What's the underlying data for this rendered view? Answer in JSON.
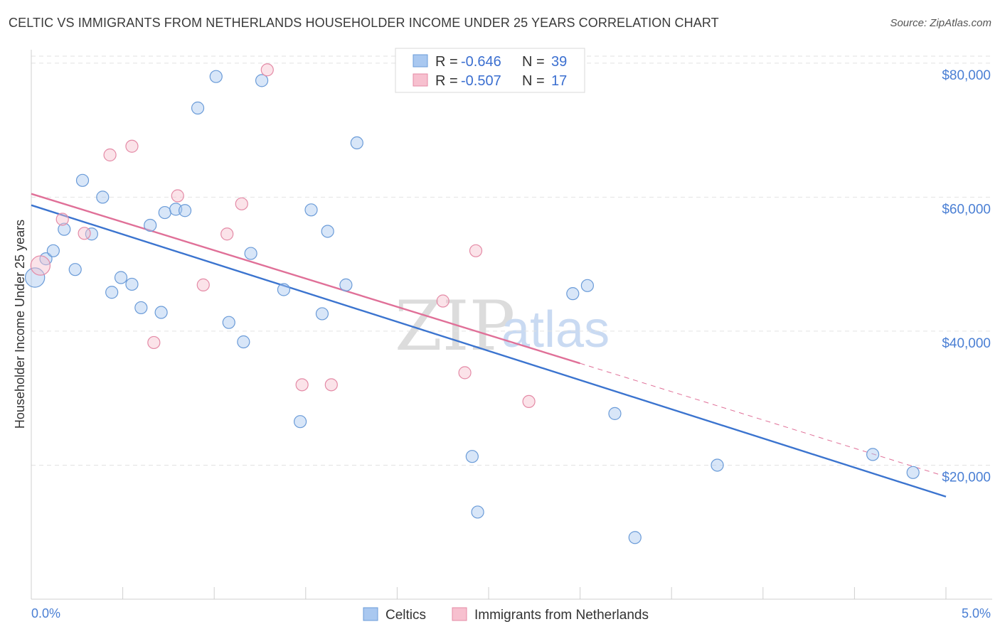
{
  "header": {
    "title": "CELTIC VS IMMIGRANTS FROM NETHERLANDS HOUSEHOLDER INCOME UNDER 25 YEARS CORRELATION CHART",
    "source": "Source: ZipAtlas.com"
  },
  "watermark": {
    "zip": "ZIP",
    "atlas": "atlas"
  },
  "stats": {
    "rows": [
      {
        "r_label": "R =",
        "r_value": "-0.646",
        "n_label": "N =",
        "n_value": "39",
        "color": "#a9c8f0"
      },
      {
        "r_label": "R =",
        "r_value": "-0.507",
        "n_label": "N =",
        "n_value": "17",
        "color": "#f7b6c8"
      }
    ]
  },
  "colors": {
    "blue_fill": "#a9c8f0",
    "blue_stroke": "#6a9bd8",
    "blue_line": "#3b74cf",
    "pink_fill": "#f7c0cf",
    "pink_stroke": "#e48aa6",
    "pink_line": "#e07098",
    "axis_text": "#4a7fd4",
    "grid": "#e2e2e2"
  },
  "chart_data": {
    "type": "scatter",
    "title": "CELTIC VS IMMIGRANTS FROM NETHERLANDS HOUSEHOLDER INCOME UNDER 25 YEARS CORRELATION CHART",
    "xlabel": "",
    "ylabel": "Householder Income Under 25 years",
    "xlim": [
      0,
      5
    ],
    "ylim": [
      0,
      82000
    ],
    "x_tick_labels": [
      "0.0%",
      "5.0%"
    ],
    "y_ticks": [
      20000,
      40000,
      60000,
      80000
    ],
    "y_tick_labels": [
      "$20,000",
      "$40,000",
      "$60,000",
      "$80,000"
    ],
    "grid": true,
    "legend_position": "bottom-center",
    "series": [
      {
        "name": "Celtics",
        "color": "#a9c8f0",
        "points": [
          [
            0.02,
            48000,
            1.6
          ],
          [
            0.08,
            50800,
            1
          ],
          [
            0.12,
            52000,
            1
          ],
          [
            0.18,
            55200,
            1
          ],
          [
            0.24,
            49200,
            1
          ],
          [
            0.28,
            62500,
            1
          ],
          [
            0.33,
            54500,
            1
          ],
          [
            0.39,
            60000,
            1
          ],
          [
            0.44,
            45800,
            1
          ],
          [
            0.49,
            48000,
            1
          ],
          [
            0.55,
            47000,
            1
          ],
          [
            0.6,
            43500,
            1
          ],
          [
            0.65,
            55800,
            1
          ],
          [
            0.71,
            42800,
            1
          ],
          [
            0.73,
            57700,
            1
          ],
          [
            0.79,
            58200,
            1
          ],
          [
            0.84,
            58000,
            1
          ],
          [
            0.91,
            73300,
            1
          ],
          [
            1.01,
            78000,
            1
          ],
          [
            1.08,
            41300,
            1
          ],
          [
            1.16,
            38400,
            1
          ],
          [
            1.2,
            51600,
            1
          ],
          [
            1.26,
            77400,
            1
          ],
          [
            1.38,
            46200,
            1
          ],
          [
            1.47,
            26500,
            1
          ],
          [
            1.53,
            58100,
            1
          ],
          [
            1.59,
            42600,
            1
          ],
          [
            1.62,
            54900,
            1
          ],
          [
            1.72,
            46900,
            1
          ],
          [
            1.78,
            68100,
            1
          ],
          [
            2.41,
            21300,
            1
          ],
          [
            2.44,
            13000,
            1
          ],
          [
            2.96,
            45600,
            1
          ],
          [
            3.04,
            46800,
            1
          ],
          [
            3.19,
            27700,
            1
          ],
          [
            3.3,
            9200,
            1
          ],
          [
            3.75,
            20000,
            1
          ],
          [
            4.6,
            21600,
            1
          ],
          [
            4.82,
            18900,
            1
          ]
        ]
      },
      {
        "name": "Immigrants from Netherlands",
        "color": "#f7b6c8",
        "points": [
          [
            0.05,
            49800,
            1.6
          ],
          [
            0.17,
            56700,
            1
          ],
          [
            0.29,
            54600,
            1
          ],
          [
            0.43,
            66300,
            1
          ],
          [
            0.55,
            67600,
            1
          ],
          [
            0.67,
            38300,
            1
          ],
          [
            0.8,
            60200,
            1
          ],
          [
            0.94,
            46900,
            1
          ],
          [
            1.07,
            54500,
            1
          ],
          [
            1.15,
            59000,
            1
          ],
          [
            1.29,
            79000,
            1
          ],
          [
            1.48,
            32000,
            1
          ],
          [
            1.64,
            32000,
            1
          ],
          [
            2.25,
            44500,
            1
          ],
          [
            2.37,
            33800,
            1
          ],
          [
            2.43,
            52000,
            1
          ],
          [
            2.72,
            29500,
            1
          ]
        ]
      }
    ],
    "trendlines": [
      {
        "series": "Celtics",
        "x": [
          0,
          5
        ],
        "y": [
          58800,
          15300
        ],
        "style": "solid"
      },
      {
        "series": "Immigrants from Netherlands",
        "x": [
          0,
          3.0
        ],
        "y": [
          60500,
          35200
        ],
        "style": "solid"
      },
      {
        "series": "Immigrants from Netherlands",
        "x": [
          3.0,
          5
        ],
        "y": [
          35200,
          18300
        ],
        "style": "dashed"
      }
    ]
  }
}
